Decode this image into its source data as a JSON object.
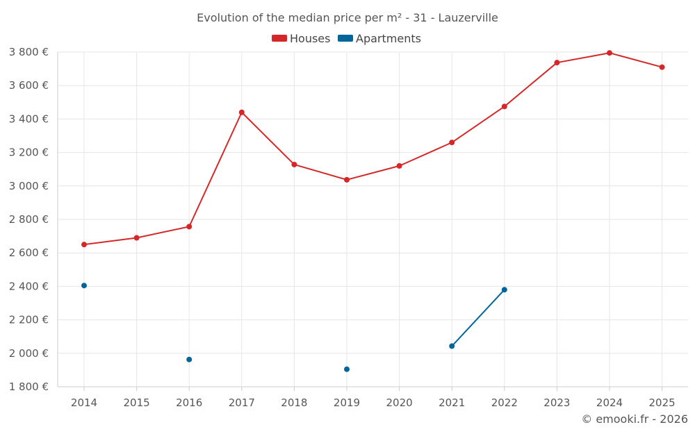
{
  "chart_data": {
    "type": "line",
    "title": "Evolution of the median price per m² - 31 - Lauzerville",
    "x": [
      "2014",
      "2015",
      "2016",
      "2017",
      "2018",
      "2019",
      "2020",
      "2021",
      "2022",
      "2023",
      "2024",
      "2025"
    ],
    "ylim": [
      1800,
      3800
    ],
    "yticks": [
      {
        "value": 1800,
        "label": "1 800 €"
      },
      {
        "value": 2000,
        "label": "2 000 €"
      },
      {
        "value": 2200,
        "label": "2 200 €"
      },
      {
        "value": 2400,
        "label": "2 400 €"
      },
      {
        "value": 2600,
        "label": "2 600 €"
      },
      {
        "value": 2800,
        "label": "2 800 €"
      },
      {
        "value": 3000,
        "label": "3 000 €"
      },
      {
        "value": 3200,
        "label": "3 200 €"
      },
      {
        "value": 3400,
        "label": "3 400 €"
      },
      {
        "value": 3600,
        "label": "3 600 €"
      },
      {
        "value": 3800,
        "label": "3 800 €"
      }
    ],
    "grid": true,
    "legend_position": "top-center",
    "series": [
      {
        "name": "Houses",
        "color": "#d62728",
        "values": [
          2650,
          2690,
          2757,
          3440,
          3128,
          3037,
          3120,
          3260,
          3475,
          3737,
          3795,
          3710
        ]
      },
      {
        "name": "Apartments",
        "color": "#006699",
        "values": [
          2405,
          null,
          1963,
          null,
          null,
          1905,
          null,
          2043,
          2380,
          null,
          null,
          null
        ]
      }
    ]
  },
  "footer": {
    "credit": "© emooki.fr - 2026"
  }
}
